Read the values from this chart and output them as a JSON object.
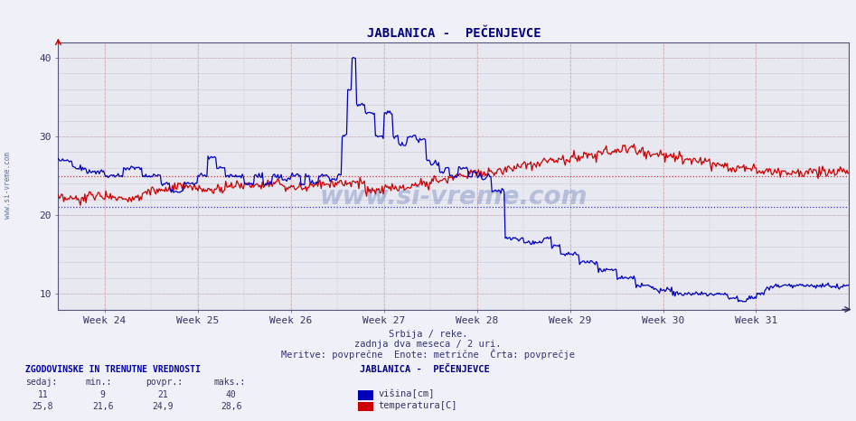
{
  "title": "JABLANICA -  PEČENJEVCE",
  "subtitle1": "Srbija / reke.",
  "subtitle2": "zadnja dva meseca / 2 uri.",
  "subtitle3": "Meritve: povprečne  Enote: metrične  Črta: povprečje",
  "xlabel_weeks": [
    "Week 24",
    "Week 25",
    "Week 26",
    "Week 27",
    "Week 28",
    "Week 29",
    "Week 30",
    "Week 31"
  ],
  "ylim": [
    8,
    42
  ],
  "yticks": [
    10,
    20,
    30,
    40
  ],
  "avg_visina": 21,
  "avg_temp": 24.9,
  "fig_bg": "#f0f0f8",
  "plot_bg": "#e8e8f0",
  "grid_color": "#c8c8d8",
  "grid_color_minor": "#d8d8e8",
  "line_color_visina": "#0000bb",
  "line_color_temp": "#cc0000",
  "avg_line_visina_color": "#2222cc",
  "avg_line_temp_color": "#cc2222",
  "watermark": "www.si-vreme.com",
  "legend_title": "JABLANICA -  PEČENJEVCE",
  "legend_visina": "višina[cm]",
  "legend_temp": "temperatura[C]",
  "table_header": "ZGODOVINSKE IN TRENUTNE VREDNOSTI",
  "table_cols": [
    "sedaj:",
    "min.:",
    "povpr.:",
    "maks.:"
  ],
  "table_row1_label": "višina",
  "table_row1": [
    "11",
    "9",
    "21",
    "40"
  ],
  "table_row2_label": "temp",
  "table_row2": [
    "25,8",
    "21,6",
    "24,9",
    "28,6"
  ],
  "figsize": [
    9.47,
    4.66
  ],
  "dpi": 100,
  "n_weeks": 8.5,
  "week_start": 23.5,
  "week_ticks": [
    24,
    25,
    26,
    27,
    28,
    29,
    30,
    31
  ]
}
